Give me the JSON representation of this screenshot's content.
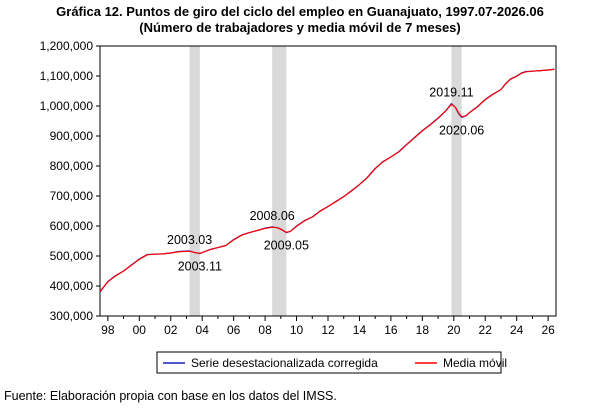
{
  "header": {
    "title": "Gráfica 12. Puntos de giro del ciclo del empleo en Guanajuato, 1997.07-2026.06",
    "subtitle": "(Número de trabajadores y media móvil de 7 meses)"
  },
  "source": "Fuente: Elaboración propia con base en los datos del IMSS.",
  "colors": {
    "series": "#1f1fbf",
    "moving_average": "#ff0000",
    "shade": "#d9d9d9"
  },
  "chart_data": {
    "type": "line",
    "xlim": [
      1997.5,
      2026.5
    ],
    "ylim": [
      300000,
      1200000
    ],
    "y_ticks": [
      300000,
      400000,
      500000,
      600000,
      700000,
      800000,
      900000,
      1000000,
      1100000,
      1200000
    ],
    "y_tick_labels": [
      "300,000",
      "400,000",
      "500,000",
      "600,000",
      "700,000",
      "800,000",
      "900,000",
      "1,000,000",
      "1,100,000",
      "1,200,000"
    ],
    "x_ticks": [
      1998,
      2000,
      2002,
      2004,
      2006,
      2008,
      2010,
      2012,
      2014,
      2016,
      2018,
      2020,
      2022,
      2024,
      2026
    ],
    "x_tick_labels": [
      "98",
      "00",
      "02",
      "04",
      "06",
      "08",
      "10",
      "12",
      "14",
      "16",
      "18",
      "20",
      "22",
      "24",
      "26"
    ],
    "shaded_periods": [
      {
        "start": 2003.2,
        "end": 2003.85
      },
      {
        "start": 2008.45,
        "end": 2009.35
      },
      {
        "start": 2019.85,
        "end": 2020.5
      }
    ],
    "annotations": [
      {
        "label": "2003.03",
        "x": 2003.2,
        "y": 517000,
        "position": "above"
      },
      {
        "label": "2003.11",
        "x": 2003.85,
        "y": 508000,
        "position": "below"
      },
      {
        "label": "2008.06",
        "x": 2008.45,
        "y": 597000,
        "position": "above"
      },
      {
        "label": "2009.05",
        "x": 2009.35,
        "y": 578000,
        "position": "below"
      },
      {
        "label": "2019.11",
        "x": 2019.85,
        "y": 1008000,
        "position": "above"
      },
      {
        "label": "2020.06",
        "x": 2020.5,
        "y": 962000,
        "position": "below"
      }
    ],
    "series": [
      {
        "name": "Serie desestacionalizada corregida",
        "x": [
          1997.5,
          1998.0,
          1998.5,
          1999.0,
          1999.5,
          2000.0,
          2000.5,
          2001.0,
          2001.5,
          2002.0,
          2002.5,
          2003.2,
          2003.5,
          2003.85,
          2004.5,
          2005.0,
          2005.5,
          2006.0,
          2006.5,
          2007.0,
          2007.5,
          2008.0,
          2008.45,
          2008.8,
          2009.0,
          2009.35,
          2009.6,
          2010.0,
          2010.5,
          2011.0,
          2011.5,
          2012.0,
          2012.5,
          2013.0,
          2013.5,
          2014.0,
          2014.5,
          2015.0,
          2015.5,
          2016.0,
          2016.5,
          2017.0,
          2017.5,
          2018.0,
          2018.5,
          2019.0,
          2019.5,
          2019.85,
          2020.1,
          2020.3,
          2020.5,
          2020.8,
          2021.0,
          2021.5,
          2022.0,
          2022.5,
          2023.0,
          2023.3,
          2023.6,
          2024.0,
          2024.3,
          2024.6,
          2025.0,
          2025.5,
          2026.0,
          2026.4
        ],
        "y": [
          380000,
          415000,
          435000,
          450000,
          470000,
          490000,
          505000,
          506000,
          507000,
          510000,
          515000,
          517000,
          512000,
          508000,
          522000,
          528000,
          535000,
          555000,
          570000,
          578000,
          585000,
          593000,
          597000,
          594000,
          590000,
          578000,
          582000,
          600000,
          618000,
          630000,
          650000,
          665000,
          682000,
          698000,
          718000,
          738000,
          762000,
          792000,
          815000,
          830000,
          848000,
          872000,
          895000,
          918000,
          938000,
          960000,
          985000,
          1008000,
          995000,
          975000,
          962000,
          968000,
          978000,
          998000,
          1022000,
          1040000,
          1055000,
          1075000,
          1090000,
          1100000,
          1110000,
          1115000,
          1116000,
          1118000,
          1120000,
          1123000
        ]
      },
      {
        "name": "Media móvil",
        "x": [
          1997.5,
          1998.0,
          1998.5,
          1999.0,
          1999.5,
          2000.0,
          2000.5,
          2001.0,
          2001.5,
          2002.0,
          2002.5,
          2003.2,
          2003.5,
          2003.85,
          2004.5,
          2005.0,
          2005.5,
          2006.0,
          2006.5,
          2007.0,
          2007.5,
          2008.0,
          2008.45,
          2008.8,
          2009.0,
          2009.35,
          2009.6,
          2010.0,
          2010.5,
          2011.0,
          2011.5,
          2012.0,
          2012.5,
          2013.0,
          2013.5,
          2014.0,
          2014.5,
          2015.0,
          2015.5,
          2016.0,
          2016.5,
          2017.0,
          2017.5,
          2018.0,
          2018.5,
          2019.0,
          2019.5,
          2019.85,
          2020.1,
          2020.3,
          2020.5,
          2020.8,
          2021.0,
          2021.5,
          2022.0,
          2022.5,
          2023.0,
          2023.3,
          2023.6,
          2024.0,
          2024.3,
          2024.6,
          2025.0,
          2025.5,
          2026.0,
          2026.4
        ],
        "y": [
          382000,
          414000,
          434000,
          450000,
          469000,
          489000,
          504000,
          506000,
          507000,
          510000,
          514000,
          516000,
          512000,
          509000,
          521000,
          528000,
          535000,
          554000,
          569000,
          578000,
          585000,
          592000,
          596000,
          594000,
          589000,
          579000,
          582000,
          599000,
          617000,
          630000,
          649000,
          665000,
          681000,
          698000,
          717000,
          738000,
          761000,
          791000,
          814000,
          830000,
          847000,
          871000,
          894000,
          917000,
          937000,
          959000,
          984000,
          1006000,
          996000,
          977000,
          964000,
          968000,
          978000,
          997000,
          1021000,
          1039000,
          1055000,
          1074000,
          1089000,
          1099000,
          1109000,
          1114000,
          1116000,
          1118000,
          1120000,
          1122000
        ]
      }
    ],
    "legend": {
      "position": "bottom",
      "entries": [
        "Serie desestacionalizada corregida",
        "Media móvil"
      ]
    }
  }
}
